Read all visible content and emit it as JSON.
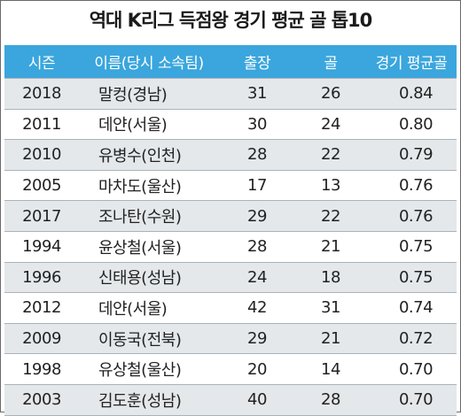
{
  "title": "역대 K리그 득점왕 경기 평균 골 톱10",
  "headers": {
    "season": "시즌",
    "name": "이름(당시 소속팀)",
    "apps": "출장",
    "goals": "골",
    "avg": "경기 평균골"
  },
  "rows": [
    {
      "season": "2018",
      "name": "말컹(경남)",
      "apps": "31",
      "goals": "26",
      "avg": "0.84"
    },
    {
      "season": "2011",
      "name": "데얀(서울)",
      "apps": "30",
      "goals": "24",
      "avg": "0.80"
    },
    {
      "season": "2010",
      "name": "유병수(인천)",
      "apps": "28",
      "goals": "22",
      "avg": "0.79"
    },
    {
      "season": "2005",
      "name": "마차도(울산)",
      "apps": "17",
      "goals": "13",
      "avg": "0.76"
    },
    {
      "season": "2017",
      "name": "조나탄(수원)",
      "apps": "29",
      "goals": "22",
      "avg": "0.76"
    },
    {
      "season": "1994",
      "name": "윤상철(서울)",
      "apps": "28",
      "goals": "21",
      "avg": "0.75"
    },
    {
      "season": "1996",
      "name": "신태용(성남)",
      "apps": "24",
      "goals": "18",
      "avg": "0.75"
    },
    {
      "season": "2012",
      "name": "데얀(서울)",
      "apps": "42",
      "goals": "31",
      "avg": "0.74"
    },
    {
      "season": "2009",
      "name": "이동국(전북)",
      "apps": "29",
      "goals": "21",
      "avg": "0.72"
    },
    {
      "season": "1998",
      "name": "유상철(울산)",
      "apps": "20",
      "goals": "14",
      "avg": "0.70"
    },
    {
      "season": "2003",
      "name": "김도훈(성남)",
      "apps": "40",
      "goals": "28",
      "avg": "0.70"
    }
  ],
  "colors": {
    "header_bg": "#3aa6dd",
    "stripe": "#e4e8eb"
  }
}
